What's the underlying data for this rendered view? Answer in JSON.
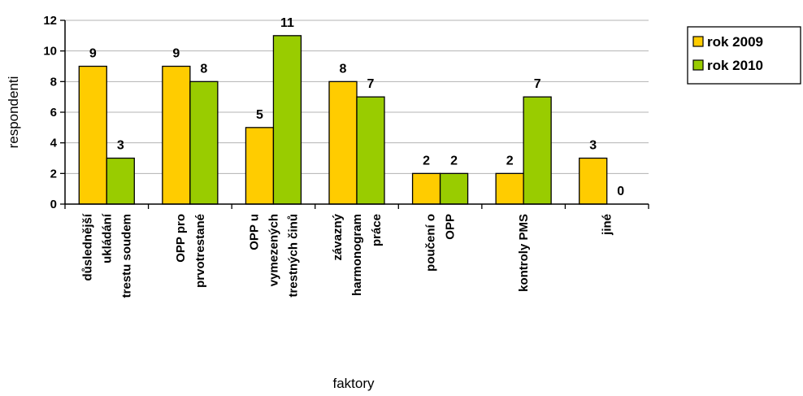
{
  "chart_data": {
    "type": "bar",
    "categories": [
      [
        "důslednější",
        "ukládání",
        "trestu soudem"
      ],
      [
        "OPP pro",
        "prvotrestané"
      ],
      [
        "OPP u",
        "vymezených",
        "trestných činů"
      ],
      [
        "závazný",
        "harmonogram",
        "práce"
      ],
      [
        "poučení o",
        "OPP"
      ],
      [
        "kontroly PMS"
      ],
      [
        "jiné"
      ]
    ],
    "series": [
      {
        "name": "rok 2009",
        "color": "#FFCC00",
        "values": [
          9,
          9,
          5,
          8,
          2,
          2,
          3
        ]
      },
      {
        "name": "rok 2010",
        "color": "#99CC00",
        "values": [
          3,
          8,
          11,
          7,
          2,
          7,
          0
        ]
      }
    ],
    "xlabel": "faktory",
    "ylabel": "respondenti",
    "ylim": [
      0,
      12
    ],
    "yticks": [
      0,
      2,
      4,
      6,
      8,
      10,
      12
    ],
    "grid": true,
    "legend": "right"
  }
}
